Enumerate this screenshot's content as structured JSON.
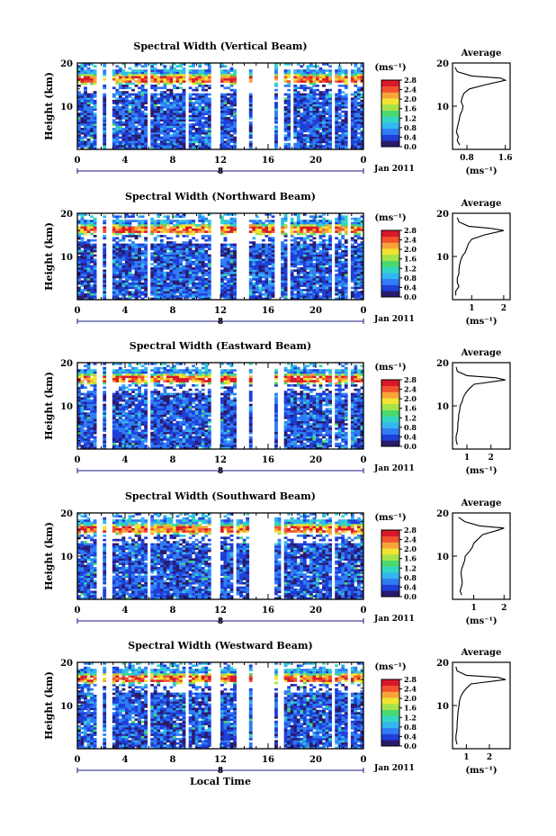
{
  "figure": {
    "xlabel": "Local Time",
    "date_label": "Jan 2011",
    "sub_tick_label": "8",
    "avg_title": "Average",
    "avg_xlabel": "(ms⁻¹)",
    "colorbar_unit": "(ms⁻¹)"
  },
  "colors": {
    "colormap": [
      "#2a1a6e",
      "#1e3fd8",
      "#2f7cf5",
      "#34b6f0",
      "#33d6c3",
      "#4bd86e",
      "#a6e24a",
      "#f1e432",
      "#f7a33a",
      "#f2522e",
      "#d9182a"
    ],
    "mask": "#ffffff",
    "axis": "#000000",
    "minor_axis": "#1a1a80"
  },
  "chart_data": [
    {
      "type": "heatmap",
      "title": "Spectral Width (Vertical Beam)",
      "xlabel": "",
      "ylabel": "Height (km)",
      "xlim": [
        0,
        24
      ],
      "ylim": [
        0,
        20
      ],
      "xticks": [
        "0",
        "4",
        "8",
        "12",
        "16",
        "20",
        "0"
      ],
      "yticks": [
        "10",
        "20"
      ],
      "colorbar_label": "(ms⁻¹)",
      "colorbar_ticks": [
        "0.0",
        "0.4",
        "0.8",
        "1.2",
        "1.6",
        "2.0",
        "2.4",
        "2.8"
      ],
      "colorbar_range": [
        0,
        2.8
      ],
      "tropopause_km": 16.5,
      "data_gaps_hours": [
        [
          1.7,
          2.0
        ],
        [
          2.5,
          2.9
        ],
        [
          5.8,
          6.1
        ],
        [
          9.1,
          9.4
        ],
        [
          11.2,
          12.0
        ],
        [
          13.4,
          14.3
        ],
        [
          14.8,
          16.5
        ],
        [
          16.8,
          17.4
        ],
        [
          17.8,
          18.0
        ],
        [
          21.4,
          21.7
        ],
        [
          22.6,
          23.0
        ]
      ],
      "average": {
        "xlabel": "(ms⁻¹)",
        "xticks": [
          "0.8",
          "1.6"
        ],
        "xlim": [
          0.5,
          1.7
        ],
        "height_km": [
          1,
          2,
          3,
          4,
          5,
          6,
          7,
          8,
          9,
          10,
          11,
          12,
          13,
          14,
          15,
          16,
          16.5,
          17,
          18,
          19
        ],
        "width_ms": [
          0.65,
          0.6,
          0.62,
          0.58,
          0.6,
          0.62,
          0.64,
          0.66,
          0.7,
          0.72,
          0.68,
          0.7,
          0.74,
          0.85,
          1.2,
          1.6,
          1.5,
          0.9,
          0.6,
          0.55
        ]
      }
    },
    {
      "type": "heatmap",
      "title": "Spectral Width (Northward Beam)",
      "xlabel": "",
      "ylabel": "Height (km)",
      "xlim": [
        0,
        24
      ],
      "ylim": [
        0,
        20
      ],
      "xticks": [
        "0",
        "4",
        "8",
        "12",
        "16",
        "20",
        "0"
      ],
      "yticks": [
        "10",
        "20"
      ],
      "colorbar_label": "(ms⁻¹)",
      "colorbar_ticks": [
        "0.0",
        "0.4",
        "0.8",
        "1.2",
        "1.6",
        "2.0",
        "2.4",
        "2.8"
      ],
      "colorbar_range": [
        0,
        2.8
      ],
      "tropopause_km": 16.5,
      "data_gaps_hours": [
        [
          1.7,
          2.0
        ],
        [
          2.5,
          2.9
        ],
        [
          5.8,
          6.1
        ],
        [
          11.2,
          12.0
        ],
        [
          13.4,
          14.3
        ],
        [
          16.5,
          17.0
        ],
        [
          17.6,
          17.8
        ],
        [
          21.4,
          21.7
        ],
        [
          22.6,
          23.0
        ]
      ],
      "average": {
        "xlabel": "(ms⁻¹)",
        "xticks": [
          "1",
          "2"
        ],
        "xlim": [
          0.4,
          2.2
        ],
        "height_km": [
          1,
          2,
          3,
          4,
          5,
          6,
          7,
          8,
          9,
          10,
          11,
          12,
          13,
          14,
          15,
          16,
          16.5,
          17,
          18,
          19
        ],
        "width_ms": [
          0.5,
          0.5,
          0.6,
          0.55,
          0.55,
          0.6,
          0.6,
          0.62,
          0.65,
          0.7,
          0.8,
          0.85,
          0.9,
          1.0,
          1.4,
          2.0,
          1.6,
          0.9,
          0.6,
          0.55
        ]
      }
    },
    {
      "type": "heatmap",
      "title": "Spectral Width (Eastward Beam)",
      "xlabel": "",
      "ylabel": "Height (km)",
      "xlim": [
        0,
        24
      ],
      "ylim": [
        0,
        20
      ],
      "xticks": [
        "0",
        "4",
        "8",
        "12",
        "16",
        "20",
        "0"
      ],
      "yticks": [
        "10",
        "20"
      ],
      "colorbar_label": "(ms⁻¹)",
      "colorbar_ticks": [
        "0.0",
        "0.4",
        "0.8",
        "1.2",
        "1.6",
        "2.0",
        "2.4",
        "2.8"
      ],
      "colorbar_range": [
        0,
        2.8
      ],
      "tropopause_km": 16.5,
      "data_gaps_hours": [
        [
          1.7,
          2.0
        ],
        [
          2.5,
          2.9
        ],
        [
          5.8,
          6.1
        ],
        [
          11.2,
          12.0
        ],
        [
          13.4,
          14.3
        ],
        [
          14.8,
          16.5
        ],
        [
          16.8,
          17.3
        ],
        [
          21.4,
          21.7
        ],
        [
          22.6,
          23.0
        ]
      ],
      "average": {
        "xlabel": "(ms⁻¹)",
        "xticks": [
          "1",
          "2"
        ],
        "xlim": [
          0.4,
          2.8
        ],
        "height_km": [
          1,
          2,
          3,
          4,
          5,
          6,
          7,
          8,
          9,
          10,
          11,
          12,
          13,
          14,
          15,
          16,
          16.5,
          17,
          18,
          19
        ],
        "width_ms": [
          0.6,
          0.55,
          0.55,
          0.6,
          0.62,
          0.62,
          0.65,
          0.66,
          0.7,
          0.72,
          0.8,
          0.85,
          0.95,
          1.1,
          1.3,
          2.6,
          2.2,
          1.0,
          0.6,
          0.55
        ]
      }
    },
    {
      "type": "heatmap",
      "title": "Spectral Width (Southward Beam)",
      "xlabel": "",
      "ylabel": "Height (km)",
      "xlim": [
        0,
        24
      ],
      "ylim": [
        0,
        20
      ],
      "xticks": [
        "0",
        "4",
        "8",
        "12",
        "16",
        "20",
        "0"
      ],
      "yticks": [
        "10",
        "20"
      ],
      "colorbar_label": "(ms⁻¹)",
      "colorbar_ticks": [
        "0.0",
        "0.4",
        "0.8",
        "1.2",
        "1.6",
        "2.0",
        "2.4",
        "2.8"
      ],
      "colorbar_range": [
        0,
        2.8
      ],
      "tropopause_km": 16.5,
      "data_gaps_hours": [
        [
          1.7,
          2.0
        ],
        [
          2.5,
          2.9
        ],
        [
          5.8,
          6.1
        ],
        [
          11.2,
          12.0
        ],
        [
          13.0,
          13.4
        ],
        [
          14.3,
          16.5
        ],
        [
          17.0,
          17.4
        ],
        [
          21.4,
          21.7
        ]
      ],
      "average": {
        "xlabel": "(ms⁻¹)",
        "xticks": [
          "1",
          "2"
        ],
        "xlim": [
          0.3,
          2.2
        ],
        "height_km": [
          1,
          2,
          3,
          4,
          5,
          6,
          7,
          8,
          9,
          10,
          11,
          12,
          13,
          14,
          15,
          16,
          16.5,
          17,
          18,
          19
        ],
        "width_ms": [
          0.6,
          0.55,
          0.6,
          0.62,
          0.6,
          0.58,
          0.6,
          0.65,
          0.7,
          0.72,
          0.85,
          0.95,
          1.0,
          1.15,
          1.3,
          1.8,
          2.0,
          1.2,
          0.7,
          0.5
        ]
      }
    },
    {
      "type": "heatmap",
      "title": "Spectral Width (Westward Beam)",
      "xlabel": "Local Time",
      "ylabel": "Height (km)",
      "xlim": [
        0,
        24
      ],
      "ylim": [
        0,
        20
      ],
      "xticks": [
        "0",
        "4",
        "8",
        "12",
        "16",
        "20",
        "0"
      ],
      "yticks": [
        "10",
        "20"
      ],
      "colorbar_label": "(ms⁻¹)",
      "colorbar_ticks": [
        "0.0",
        "0.4",
        "0.8",
        "1.2",
        "1.6",
        "2.0",
        "2.4",
        "2.8"
      ],
      "colorbar_range": [
        0,
        2.8
      ],
      "tropopause_km": 16.5,
      "data_gaps_hours": [
        [
          1.7,
          2.0
        ],
        [
          2.5,
          2.9
        ],
        [
          5.8,
          6.1
        ],
        [
          9.0,
          9.3
        ],
        [
          11.2,
          12.0
        ],
        [
          13.4,
          14.3
        ],
        [
          14.8,
          16.5
        ],
        [
          16.8,
          17.3
        ],
        [
          21.4,
          21.7
        ],
        [
          22.6,
          23.0
        ]
      ],
      "average": {
        "xlabel": "(ms⁻¹)",
        "xticks": [
          "1",
          "2"
        ],
        "xlim": [
          0.4,
          2.9
        ],
        "height_km": [
          1,
          2,
          3,
          4,
          5,
          6,
          7,
          8,
          9,
          10,
          11,
          12,
          13,
          14,
          15,
          16,
          16.5,
          17,
          18,
          19
        ],
        "width_ms": [
          0.6,
          0.55,
          0.55,
          0.58,
          0.6,
          0.6,
          0.62,
          0.63,
          0.65,
          0.68,
          0.7,
          0.75,
          0.85,
          1.0,
          1.2,
          2.7,
          2.4,
          1.0,
          0.6,
          0.55
        ]
      }
    }
  ]
}
